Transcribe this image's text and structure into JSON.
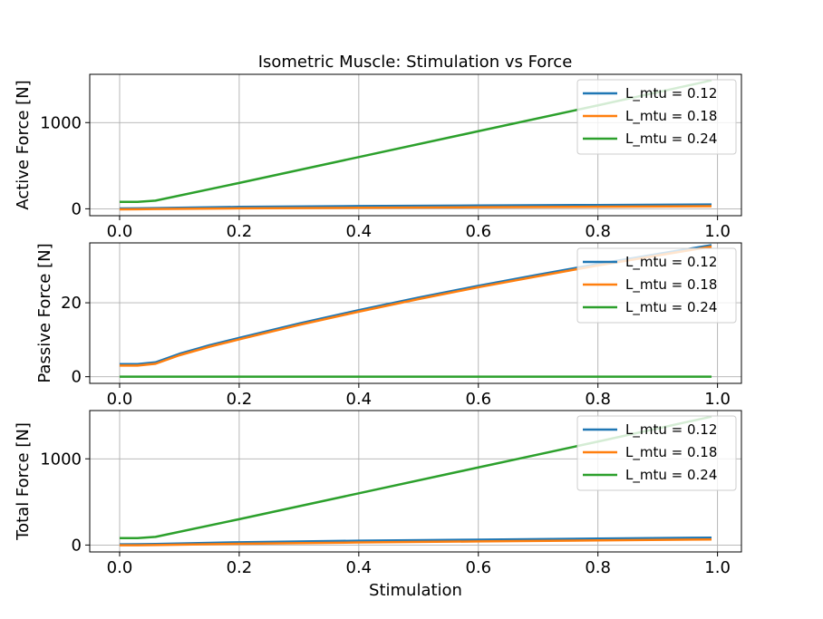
{
  "title": "Isometric Muscle: Stimulation vs Force",
  "colors": {
    "series": [
      "#1f77b4",
      "#ff7f0e",
      "#2ca02c"
    ]
  },
  "chart_data": [
    {
      "type": "line",
      "ylabel": "Active Force [N]",
      "xlabel": "",
      "xlim": [
        -0.05,
        1.04
      ],
      "ylim": [
        -80,
        1560
      ],
      "xticks": [
        0.0,
        0.2,
        0.4,
        0.6,
        0.8,
        1.0
      ],
      "xtick_labels": [
        "0.0",
        "0.2",
        "0.4",
        "0.6",
        "0.8",
        "1.0"
      ],
      "yticks": [
        0,
        1000
      ],
      "ytick_labels": [
        "0",
        "1000"
      ],
      "grid": true,
      "legend_position": "top-right",
      "x": [
        0.0,
        0.03,
        0.06,
        0.2,
        0.4,
        0.6,
        0.8,
        0.99
      ],
      "series": [
        {
          "name": "L_mtu = 0.12",
          "values": [
            4,
            5,
            8,
            22,
            32,
            38,
            44,
            50
          ]
        },
        {
          "name": "L_mtu = 0.18",
          "values": [
            -6,
            -5,
            -3,
            5,
            12,
            18,
            24,
            30
          ]
        },
        {
          "name": "L_mtu = 0.24",
          "values": [
            80,
            80,
            95,
            300,
            600,
            900,
            1200,
            1490
          ]
        }
      ]
    },
    {
      "type": "line",
      "ylabel": "Passive Force [N]",
      "xlabel": "",
      "xlim": [
        -0.05,
        1.04
      ],
      "ylim": [
        -1.8,
        36.2
      ],
      "xticks": [
        0.0,
        0.2,
        0.4,
        0.6,
        0.8,
        1.0
      ],
      "xtick_labels": [
        "0.0",
        "0.2",
        "0.4",
        "0.6",
        "0.8",
        "1.0"
      ],
      "yticks": [
        0,
        20
      ],
      "ytick_labels": [
        "0",
        "20"
      ],
      "grid": true,
      "legend_position": "top-right",
      "x": [
        0.0,
        0.03,
        0.06,
        0.1,
        0.15,
        0.2,
        0.3,
        0.4,
        0.5,
        0.6,
        0.7,
        0.8,
        0.9,
        0.99
      ],
      "series": [
        {
          "name": "L_mtu = 0.12",
          "values": [
            3.4,
            3.4,
            3.9,
            6.2,
            8.5,
            10.5,
            14.4,
            18.0,
            21.4,
            24.6,
            27.6,
            30.5,
            33.2,
            35.6
          ]
        },
        {
          "name": "L_mtu = 0.18",
          "values": [
            3.0,
            3.0,
            3.5,
            5.8,
            8.1,
            10.1,
            14.0,
            17.6,
            21.0,
            24.2,
            27.2,
            30.1,
            32.8,
            35.2
          ]
        },
        {
          "name": "L_mtu = 0.24",
          "values": [
            0,
            0,
            0,
            0,
            0,
            0,
            0,
            0,
            0,
            0,
            0,
            0,
            0,
            0
          ]
        }
      ]
    },
    {
      "type": "line",
      "ylabel": "Total Force [N]",
      "xlabel": "Stimulation",
      "xlim": [
        -0.05,
        1.04
      ],
      "ylim": [
        -80,
        1560
      ],
      "xticks": [
        0.0,
        0.2,
        0.4,
        0.6,
        0.8,
        1.0
      ],
      "xtick_labels": [
        "0.0",
        "0.2",
        "0.4",
        "0.6",
        "0.8",
        "1.0"
      ],
      "yticks": [
        0,
        1000
      ],
      "ytick_labels": [
        "0",
        "1000"
      ],
      "grid": true,
      "legend_position": "top-right",
      "x": [
        0.0,
        0.03,
        0.06,
        0.2,
        0.4,
        0.6,
        0.8,
        0.99
      ],
      "series": [
        {
          "name": "L_mtu = 0.12",
          "values": [
            8,
            9,
            12,
            32,
            50,
            62,
            75,
            86
          ]
        },
        {
          "name": "L_mtu = 0.18",
          "values": [
            -3,
            -2,
            0,
            15,
            30,
            42,
            54,
            65
          ]
        },
        {
          "name": "L_mtu = 0.24",
          "values": [
            80,
            80,
            95,
            300,
            600,
            900,
            1200,
            1490
          ]
        }
      ]
    }
  ]
}
